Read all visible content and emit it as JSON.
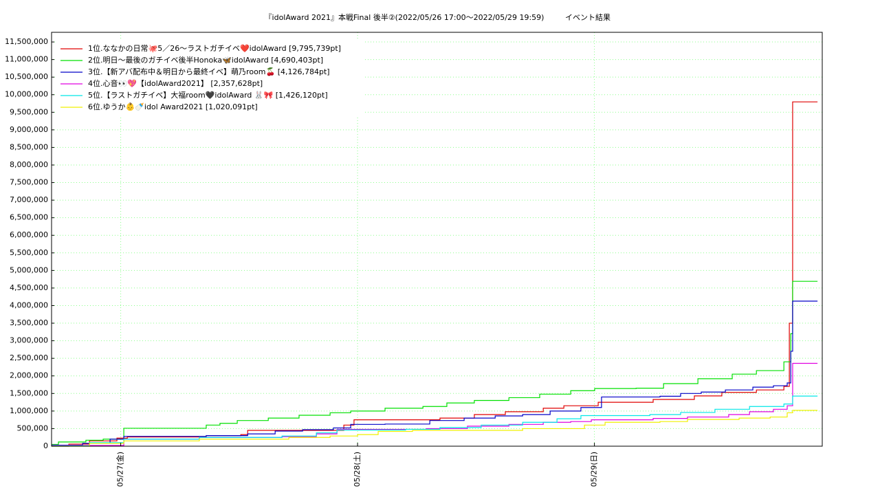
{
  "chart_data": {
    "type": "line",
    "step": true,
    "title": "『idolAward 2021』本戦Final 後半②(2022/05/26 17:00～2022/05/29 19:59)",
    "subtitle": "イベント結果",
    "grid": true,
    "legend": "upper left",
    "xlim": [
      26.708,
      29.962
    ],
    "xticks": [
      {
        "value": 27,
        "label": "05/27(金)"
      },
      {
        "value": 28,
        "label": "05/28(土)"
      },
      {
        "value": 29,
        "label": "05/29(日)"
      }
    ],
    "ylim": [
      0,
      11775000
    ],
    "yticks": [
      {
        "value": 0,
        "label": "0"
      },
      {
        "value": 500000,
        "label": "500,000"
      },
      {
        "value": 1000000,
        "label": "1,000,000"
      },
      {
        "value": 1500000,
        "label": "1,500,000"
      },
      {
        "value": 2000000,
        "label": "2,000,000"
      },
      {
        "value": 2500000,
        "label": "2,500,000"
      },
      {
        "value": 3000000,
        "label": "3,000,000"
      },
      {
        "value": 3500000,
        "label": "3,500,000"
      },
      {
        "value": 4000000,
        "label": "4,000,000"
      },
      {
        "value": 4500000,
        "label": "4,500,000"
      },
      {
        "value": 5000000,
        "label": "5,000,000"
      },
      {
        "value": 5500000,
        "label": "5,500,000"
      },
      {
        "value": 6000000,
        "label": "6,000,000"
      },
      {
        "value": 6500000,
        "label": "6,500,000"
      },
      {
        "value": 7000000,
        "label": "7,000,000"
      },
      {
        "value": 7500000,
        "label": "7,500,000"
      },
      {
        "value": 8000000,
        "label": "8,000,000"
      },
      {
        "value": 8500000,
        "label": "8,500,000"
      },
      {
        "value": 9000000,
        "label": "9,000,000"
      },
      {
        "value": 9500000,
        "label": "9,500,000"
      },
      {
        "value": 10000000,
        "label": "10,000,000"
      },
      {
        "value": 10500000,
        "label": "10,500,000"
      },
      {
        "value": 11000000,
        "label": "11,000,000"
      },
      {
        "value": 11500000,
        "label": "11,500,000"
      }
    ],
    "series": [
      {
        "name": "1位.ななかの日常🐙5／26〜ラストガチイベ❤️idolAward [9,795,739pt]",
        "color": "#e00000",
        "x": [
          26.708,
          26.781,
          26.868,
          26.984,
          27.028,
          27.361,
          27.507,
          27.536,
          27.942,
          27.985,
          28.348,
          28.493,
          28.624,
          28.784,
          28.871,
          29.016,
          29.248,
          29.422,
          29.538,
          29.684,
          29.8,
          29.823,
          29.837,
          29.942
        ],
        "values": [
          0,
          60000,
          150000,
          230000,
          260000,
          300000,
          330000,
          450000,
          600000,
          750000,
          800000,
          900000,
          980000,
          1080000,
          1150000,
          1250000,
          1330000,
          1430000,
          1530000,
          1600000,
          1700000,
          3500000,
          9795739,
          9795739
        ]
      },
      {
        "name": "2位.明日〜最後のガチイベ後半Honoka🦋idolAward [4,690,403pt]",
        "color": "#00e000",
        "x": [
          26.708,
          26.737,
          26.853,
          26.926,
          27.013,
          27.361,
          27.419,
          27.492,
          27.623,
          27.753,
          27.884,
          27.971,
          28.116,
          28.276,
          28.377,
          28.493,
          28.639,
          28.769,
          28.9,
          29.001,
          29.176,
          29.292,
          29.437,
          29.582,
          29.684,
          29.8,
          29.829,
          29.837,
          29.942
        ],
        "values": [
          50000,
          120000,
          170000,
          200000,
          510000,
          600000,
          650000,
          730000,
          800000,
          880000,
          950000,
          1000000,
          1080000,
          1130000,
          1230000,
          1300000,
          1380000,
          1480000,
          1580000,
          1640000,
          1650000,
          1780000,
          1920000,
          2050000,
          2150000,
          2400000,
          3200000,
          4690403,
          4690403
        ]
      },
      {
        "name": "3位.【新アバ配布中＆明日から最終イベ】萌乃room🍒 [4,126,784pt]",
        "color": "#0000c8",
        "x": [
          26.708,
          26.839,
          26.955,
          27.013,
          27.361,
          27.536,
          27.652,
          27.768,
          27.898,
          27.971,
          28.116,
          28.305,
          28.45,
          28.581,
          28.697,
          28.813,
          28.943,
          29.03,
          29.277,
          29.364,
          29.451,
          29.553,
          29.669,
          29.756,
          29.814,
          29.829,
          29.837,
          29.942
        ],
        "values": [
          30000,
          80000,
          200000,
          280000,
          300000,
          350000,
          430000,
          470000,
          520000,
          620000,
          630000,
          730000,
          800000,
          860000,
          900000,
          1000000,
          1100000,
          1400000,
          1420000,
          1500000,
          1540000,
          1600000,
          1680000,
          1720000,
          1800000,
          2700000,
          4126784,
          4126784
        ]
      },
      {
        "name": "4位.心音👀💖【idolAward2021】 [2,357,628pt]",
        "color": "#e000e0",
        "x": [
          26.708,
          27.013,
          27.332,
          27.681,
          27.826,
          27.913,
          28.029,
          28.29,
          28.464,
          28.639,
          28.784,
          28.9,
          28.987,
          29.248,
          29.393,
          29.567,
          29.655,
          29.756,
          29.814,
          29.837,
          29.942
        ],
        "values": [
          20000,
          200000,
          250000,
          270000,
          350000,
          480000,
          480000,
          500000,
          570000,
          620000,
          680000,
          700000,
          750000,
          790000,
          830000,
          900000,
          980000,
          1050000,
          1150000,
          2357628,
          2357628
        ]
      },
      {
        "name": "5位.【ラストガチイベ】大福room🖤idolAward 🐰🎀 [1,426,120pt]",
        "color": "#00e8e8",
        "x": [
          26.708,
          26.868,
          27.013,
          27.332,
          27.681,
          27.826,
          27.913,
          28.203,
          28.348,
          28.522,
          28.697,
          28.842,
          28.943,
          29.234,
          29.364,
          29.509,
          29.655,
          29.8,
          29.837,
          29.942
        ],
        "values": [
          10000,
          100000,
          200000,
          250000,
          290000,
          380000,
          460000,
          480000,
          530000,
          600000,
          680000,
          780000,
          870000,
          900000,
          960000,
          1050000,
          1130000,
          1200000,
          1426120,
          1426120
        ]
      },
      {
        "name": "6位.ゆうか👶🍼idol Award2021 [1,020,091pt]",
        "color": "#f0f000",
        "x": [
          26.708,
          26.868,
          27.013,
          27.332,
          27.71,
          27.884,
          28.0,
          28.087,
          28.232,
          28.697,
          28.958,
          29.045,
          29.277,
          29.393,
          29.611,
          29.742,
          29.814,
          29.837,
          29.942
        ],
        "values": [
          0,
          80000,
          150000,
          200000,
          250000,
          290000,
          330000,
          420000,
          450000,
          500000,
          600000,
          680000,
          700000,
          760000,
          800000,
          830000,
          950000,
          1020091,
          1020091
        ]
      }
    ]
  }
}
